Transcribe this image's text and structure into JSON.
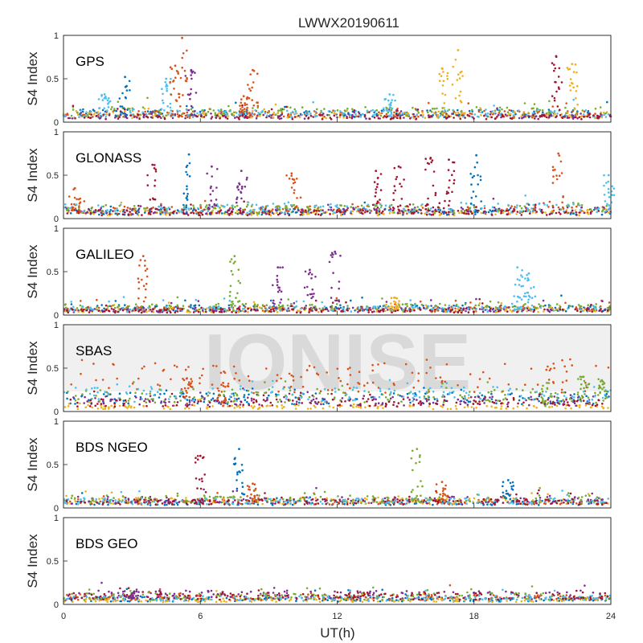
{
  "chart_data": {
    "type": "scatter",
    "title": "LWWX20190611",
    "xlabel": "UT(h)",
    "ylabel": "S4 Index",
    "xlim": [
      0,
      24
    ],
    "ylim": [
      0,
      1
    ],
    "x_ticks": [
      "0",
      "6",
      "12",
      "18",
      "24"
    ],
    "y_ticks": [
      "0",
      "0.5",
      "1"
    ],
    "watermark": "IONISE",
    "series_colors": [
      "#0072BD",
      "#D95319",
      "#EDB120",
      "#7E2F8E",
      "#77AC30",
      "#4DBEEE",
      "#A2142F"
    ],
    "panels": [
      {
        "system": "GPS",
        "baseline": [
          0.1,
          0.09,
          0.08,
          0.07,
          0.12,
          0.1,
          0.06
        ],
        "peaks": [
          {
            "x": 1.8,
            "y": 0.32,
            "c": 5
          },
          {
            "x": 2.7,
            "y": 0.52,
            "c": 0
          },
          {
            "x": 4.5,
            "y": 0.5,
            "c": 5
          },
          {
            "x": 4.9,
            "y": 0.65,
            "c": 1
          },
          {
            "x": 5.2,
            "y": 0.97,
            "c": 1
          },
          {
            "x": 5.6,
            "y": 0.6,
            "c": 3
          },
          {
            "x": 8.3,
            "y": 0.6,
            "c": 1
          },
          {
            "x": 7.9,
            "y": 0.3,
            "c": 1
          },
          {
            "x": 16.6,
            "y": 0.62,
            "c": 2
          },
          {
            "x": 17.3,
            "y": 0.83,
            "c": 2
          },
          {
            "x": 21.6,
            "y": 0.76,
            "c": 6
          },
          {
            "x": 22.3,
            "y": 0.67,
            "c": 2
          },
          {
            "x": 14.3,
            "y": 0.32,
            "c": 5
          }
        ]
      },
      {
        "system": "GLONASS",
        "baseline": [
          0.08,
          0.1,
          0.07,
          0.09,
          0.11,
          0.12,
          0.07
        ],
        "peaks": [
          {
            "x": 0.5,
            "y": 0.35,
            "c": 1
          },
          {
            "x": 3.9,
            "y": 0.62,
            "c": 6
          },
          {
            "x": 5.5,
            "y": 0.74,
            "c": 0
          },
          {
            "x": 6.5,
            "y": 0.6,
            "c": 3
          },
          {
            "x": 7.8,
            "y": 0.55,
            "c": 3
          },
          {
            "x": 10.0,
            "y": 0.52,
            "c": 1
          },
          {
            "x": 13.7,
            "y": 0.55,
            "c": 6
          },
          {
            "x": 14.7,
            "y": 0.6,
            "c": 6
          },
          {
            "x": 16.1,
            "y": 0.7,
            "c": 6
          },
          {
            "x": 16.9,
            "y": 0.68,
            "c": 6
          },
          {
            "x": 18.1,
            "y": 0.73,
            "c": 0
          },
          {
            "x": 21.7,
            "y": 0.75,
            "c": 1
          },
          {
            "x": 23.9,
            "y": 0.5,
            "c": 5
          }
        ]
      },
      {
        "system": "GALILEO",
        "baseline": [
          0.08,
          0.07,
          0.06,
          0.06,
          0.09,
          0.07,
          0.05
        ],
        "peaks": [
          {
            "x": 3.5,
            "y": 0.68,
            "c": 1
          },
          {
            "x": 7.5,
            "y": 0.68,
            "c": 4
          },
          {
            "x": 9.4,
            "y": 0.55,
            "c": 3
          },
          {
            "x": 10.8,
            "y": 0.52,
            "c": 3
          },
          {
            "x": 11.9,
            "y": 0.73,
            "c": 3
          },
          {
            "x": 19.9,
            "y": 0.55,
            "c": 5
          },
          {
            "x": 20.4,
            "y": 0.48,
            "c": 5
          },
          {
            "x": 14.5,
            "y": 0.2,
            "c": 2
          }
        ]
      },
      {
        "system": "SBAS",
        "baseline": [
          0.15,
          0.38,
          0.05,
          0.12,
          0.18,
          0.2,
          0.1
        ],
        "peaks": [
          {
            "x": 5.4,
            "y": 0.38,
            "c": 1
          },
          {
            "x": 7.0,
            "y": 0.33,
            "c": 1
          },
          {
            "x": 21.2,
            "y": 0.33,
            "c": 4
          },
          {
            "x": 22.8,
            "y": 0.4,
            "c": 4
          },
          {
            "x": 23.6,
            "y": 0.36,
            "c": 4
          }
        ]
      },
      {
        "system": "BDS NGEO",
        "baseline": [
          0.06,
          0.07,
          0.08,
          0.09,
          0.1,
          0.08,
          0.07
        ],
        "peaks": [
          {
            "x": 6.0,
            "y": 0.6,
            "c": 6
          },
          {
            "x": 7.7,
            "y": 0.68,
            "c": 0
          },
          {
            "x": 15.5,
            "y": 0.68,
            "c": 4
          },
          {
            "x": 19.5,
            "y": 0.32,
            "c": 0
          },
          {
            "x": 8.3,
            "y": 0.28,
            "c": 1
          },
          {
            "x": 16.6,
            "y": 0.3,
            "c": 1
          }
        ]
      },
      {
        "system": "BDS GEO",
        "baseline": [
          0.06,
          0.08,
          0.05,
          0.11,
          0.09,
          0.07,
          0.1
        ],
        "peaks": [
          {
            "x": 3.1,
            "y": 0.15,
            "c": 3
          }
        ]
      }
    ]
  }
}
